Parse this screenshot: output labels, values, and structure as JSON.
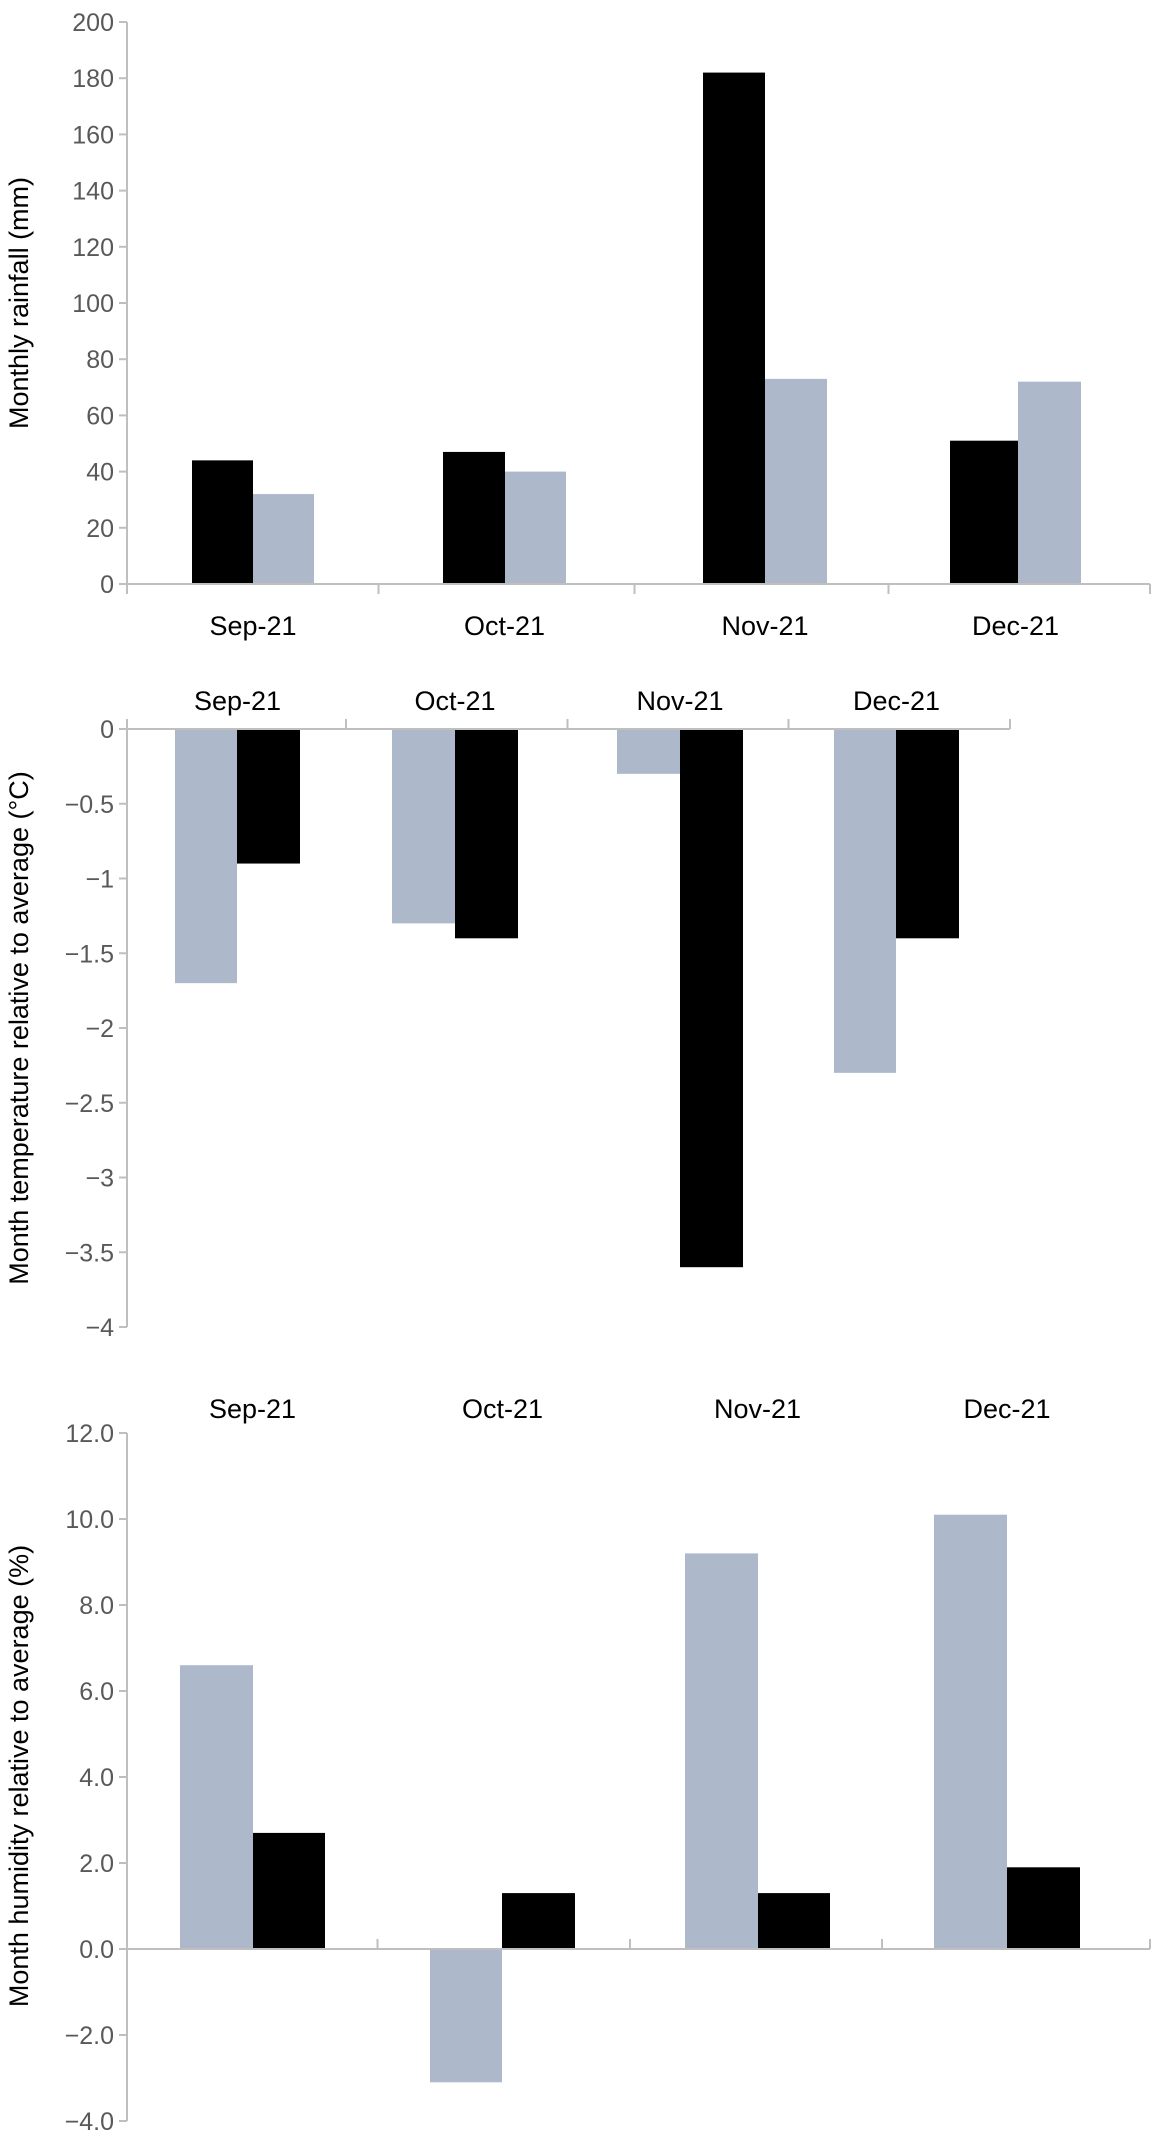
{
  "chart_data": [
    {
      "type": "bar",
      "ylabel": "Monthly rainfall (mm)",
      "ylim": [
        0,
        200
      ],
      "yticks": [
        "0",
        "20",
        "40",
        "60",
        "80",
        "100",
        "120",
        "140",
        "160",
        "180",
        "200"
      ],
      "categories": [
        "Sep-21",
        "Oct-21",
        "Nov-21",
        "Dec-21"
      ],
      "category_label_position": "bottom",
      "series": [
        {
          "color": "#000000",
          "values": [
            44,
            47,
            182,
            51
          ]
        },
        {
          "color": "#adb9ca",
          "values": [
            32,
            40,
            73,
            72
          ]
        }
      ],
      "grid": false,
      "legend": "none"
    },
    {
      "type": "bar",
      "ylabel": "Month temperature relative to average (°C)",
      "ylim": [
        -4,
        0
      ],
      "yticks": [
        "0",
        "−0.5",
        "−1",
        "−1.5",
        "−2",
        "−2.5",
        "−3",
        "−3.5",
        "−4"
      ],
      "categories": [
        "Sep-21",
        "Oct-21",
        "Nov-21",
        "Dec-21"
      ],
      "category_label_position": "top",
      "series": [
        {
          "color": "#adb9ca",
          "values": [
            -1.7,
            -1.3,
            -0.3,
            -2.3
          ]
        },
        {
          "color": "#000000",
          "values": [
            -0.9,
            -1.4,
            -3.6,
            -1.4
          ]
        }
      ],
      "grid": false,
      "legend": "none"
    },
    {
      "type": "bar",
      "ylabel": "Month humidity relative to average (%)",
      "ylim": [
        -4,
        12
      ],
      "yticks": [
        "−4.0",
        "−2.0",
        "0.0",
        "2.0",
        "4.0",
        "6.0",
        "8.0",
        "10.0",
        "12.0"
      ],
      "categories": [
        "Sep-21",
        "Oct-21",
        "Nov-21",
        "Dec-21"
      ],
      "category_label_position": "top",
      "series": [
        {
          "color": "#adb9ca",
          "values": [
            6.6,
            -3.1,
            9.2,
            10.1
          ]
        },
        {
          "color": "#000000",
          "values": [
            2.7,
            1.3,
            1.3,
            1.9
          ]
        }
      ],
      "grid": false,
      "legend": "none"
    }
  ]
}
